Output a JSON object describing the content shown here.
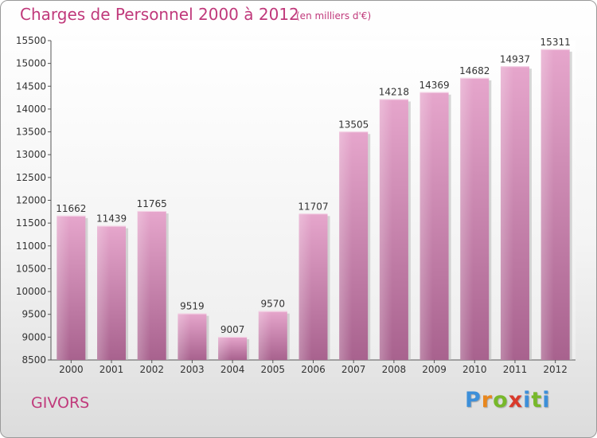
{
  "header": {
    "title": "Charges de Personnel 2000 à 2012",
    "subtitle": "(en milliers d'€)"
  },
  "footer": {
    "city": "GIVORS",
    "logo": {
      "letters": [
        "P",
        "r",
        "o",
        "x",
        "i",
        "t",
        "i"
      ],
      "colors": [
        "#3d8fd9",
        "#e8871e",
        "#77b82a",
        "#d93a2b",
        "#3d8fd9",
        "#77b82a",
        "#3d8fd9"
      ]
    }
  },
  "chart_data": {
    "type": "bar",
    "title": "Charges de Personnel 2000 à 2012",
    "subtitle": "(en milliers d'€)",
    "categories": [
      "2000",
      "2001",
      "2002",
      "2003",
      "2004",
      "2005",
      "2006",
      "2007",
      "2008",
      "2009",
      "2010",
      "2011",
      "2012"
    ],
    "values": [
      11662,
      11439,
      11765,
      9519,
      9007,
      9570,
      11707,
      13505,
      14218,
      14369,
      14682,
      14937,
      15311
    ],
    "ylim": [
      8500,
      15500
    ],
    "yticks": [
      8500,
      9000,
      9500,
      10000,
      10500,
      11000,
      11500,
      12000,
      12500,
      13000,
      13500,
      14000,
      14500,
      15000,
      15500
    ],
    "grid": false,
    "bar_color": "#d98fbc",
    "value_labels": true
  }
}
